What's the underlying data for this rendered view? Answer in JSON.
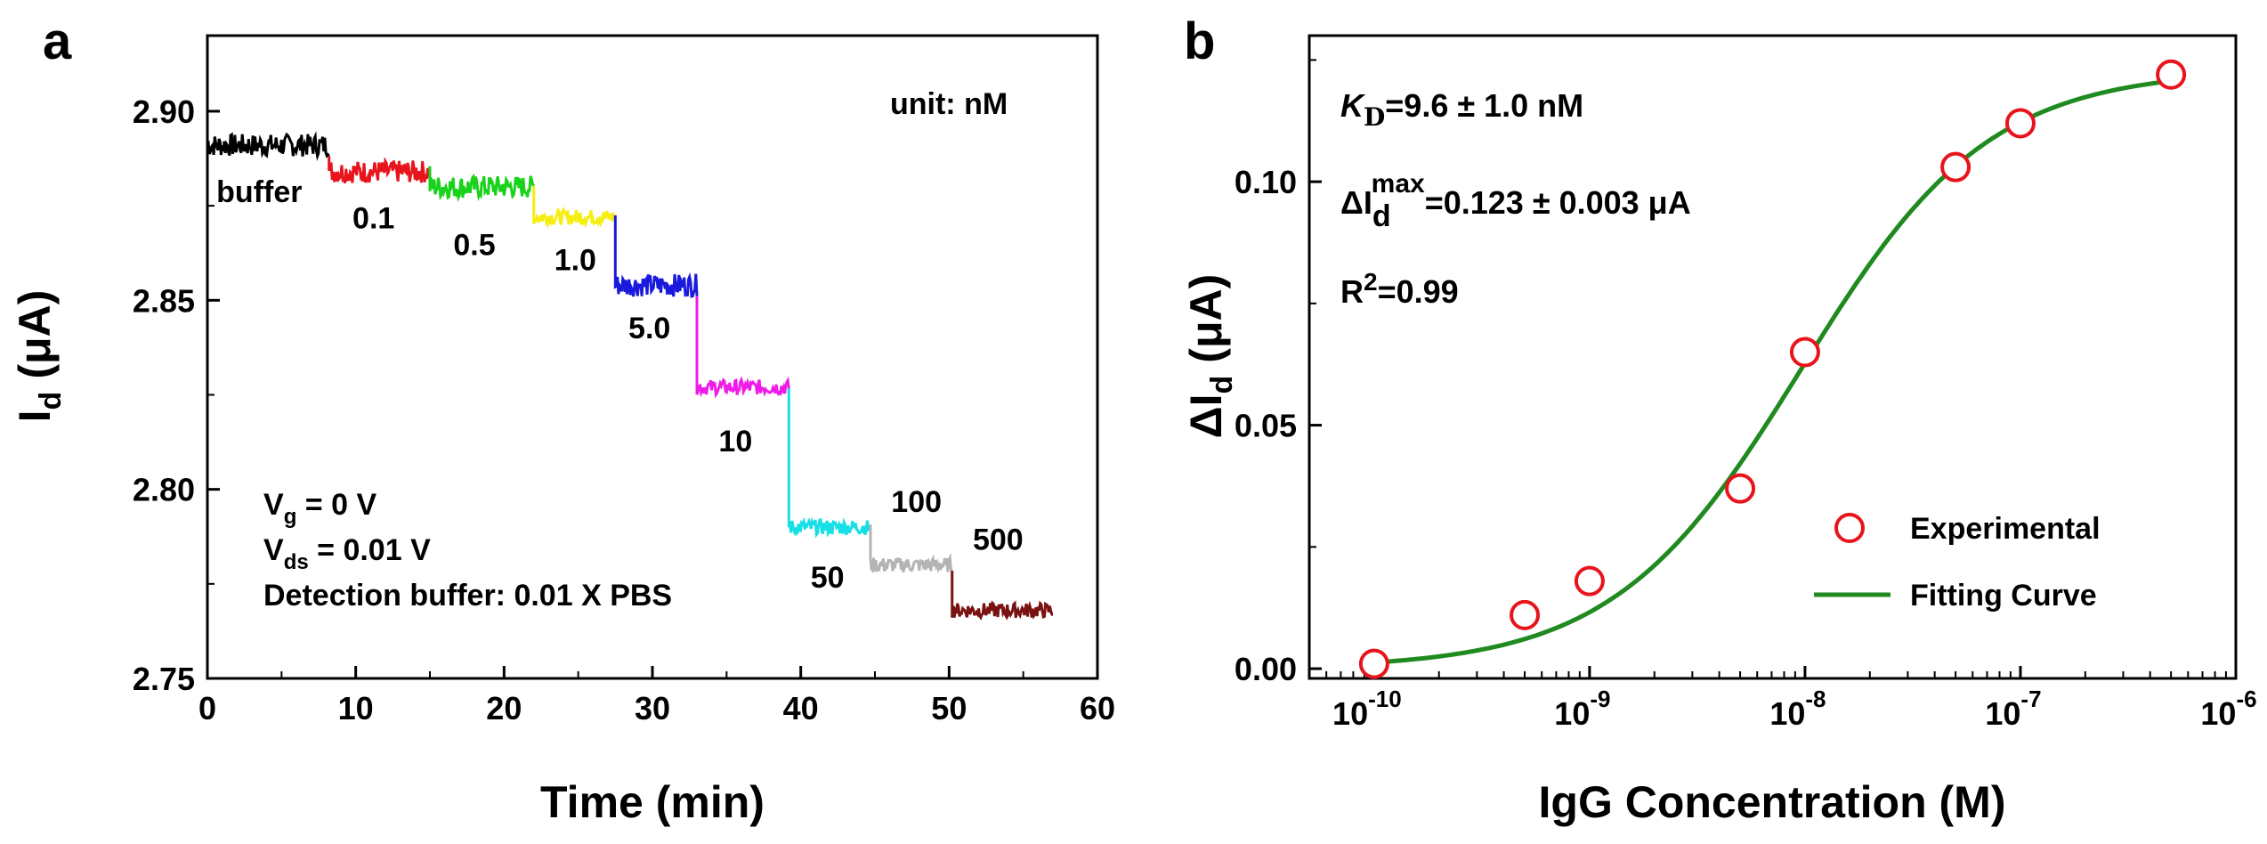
{
  "chart_data": [
    {
      "panel": "a",
      "type": "line",
      "xlabel_main": "Time (min)",
      "ylabel_main": "I",
      "ylabel_sub": "d",
      "ylabel_unit": "(μA)",
      "xlim": [
        0,
        60
      ],
      "ylim": [
        2.75,
        2.92
      ],
      "xticks": [
        0,
        10,
        20,
        30,
        40,
        50,
        60
      ],
      "yticks": [
        "2.75",
        "2.80",
        "2.85",
        "2.90"
      ],
      "ytick_values": [
        2.75,
        2.8,
        2.85,
        2.9
      ],
      "unit_note": "unit: nM",
      "conditions": [
        {
          "main": "V",
          "sub": "g",
          "rest": " = 0 V"
        },
        {
          "main": "V",
          "sub": "ds",
          "rest": " = 0.01 V"
        },
        {
          "main": "Detection buffer: 0.01 X PBS",
          "sub": "",
          "rest": ""
        }
      ],
      "series": [
        {
          "label": "buffer",
          "color": "#000000",
          "t_start": 0.0,
          "t_end": 8.2,
          "level": 2.891,
          "noise": 0.003,
          "label_at": [
            3.5,
            2.876
          ]
        },
        {
          "label": "0.1",
          "color": "#e8141b",
          "t_start": 8.2,
          "t_end": 15.0,
          "level": 2.884,
          "noise": 0.003,
          "label_at": [
            11.2,
            2.869
          ]
        },
        {
          "label": "0.5",
          "color": "#18d21b",
          "t_start": 15.0,
          "t_end": 22.0,
          "level": 2.88,
          "noise": 0.003,
          "label_at": [
            18.0,
            2.862
          ]
        },
        {
          "label": "1.0",
          "color": "#f5ee10",
          "t_start": 22.0,
          "t_end": 27.5,
          "level": 2.872,
          "noise": 0.002,
          "label_at": [
            24.8,
            2.858
          ]
        },
        {
          "label": "5.0",
          "color": "#1a1adc",
          "t_start": 27.5,
          "t_end": 33.0,
          "level": 2.854,
          "noise": 0.003,
          "label_at": [
            29.8,
            2.84
          ]
        },
        {
          "label": "10",
          "color": "#ee1ce8",
          "t_start": 33.0,
          "t_end": 39.2,
          "level": 2.827,
          "noise": 0.002,
          "label_at": [
            35.6,
            2.81
          ]
        },
        {
          "label": "50",
          "color": "#16e0e6",
          "t_start": 39.2,
          "t_end": 44.7,
          "level": 2.79,
          "noise": 0.002,
          "label_at": [
            41.8,
            2.774
          ]
        },
        {
          "label": "100",
          "color": "#b4b4b4",
          "t_start": 44.7,
          "t_end": 50.2,
          "level": 2.78,
          "noise": 0.002,
          "label_at": [
            47.8,
            2.794
          ]
        },
        {
          "label": "500",
          "color": "#7a1212",
          "t_start": 50.2,
          "t_end": 57.0,
          "level": 2.768,
          "noise": 0.002,
          "label_at": [
            53.3,
            2.784
          ]
        }
      ]
    },
    {
      "panel": "b",
      "type": "scatter",
      "xlabel_main": "IgG Concentration (M)",
      "ylabel_main": "ΔI",
      "ylabel_sub": "d",
      "ylabel_unit": "(μA)",
      "xscale": "log",
      "xlim": [
        5e-11,
        1e-06
      ],
      "ylim": [
        -0.002,
        0.13
      ],
      "xticks": [
        {
          "value": 1e-10,
          "base": "10",
          "exp": "-10"
        },
        {
          "value": 1e-09,
          "base": "10",
          "exp": "-9"
        },
        {
          "value": 1e-08,
          "base": "10",
          "exp": "-8"
        },
        {
          "value": 1e-07,
          "base": "10",
          "exp": "-7"
        },
        {
          "value": 1e-06,
          "base": "10",
          "exp": "-6"
        }
      ],
      "yticks": [
        "0.00",
        "0.05",
        "0.10"
      ],
      "ytick_values": [
        0.0,
        0.05,
        0.1
      ],
      "kd_line": {
        "k": "K",
        "sub": "D",
        "rest": "=9.6 ± 1.0 nM"
      },
      "imax_line": {
        "main": "ΔI",
        "sub": "d",
        "sup": "max",
        "rest": "=0.123 ± 0.003 μA"
      },
      "r2_line": {
        "main": "R",
        "sup": "2",
        "rest": "=0.99"
      },
      "legend": {
        "position": "bottom-right",
        "experimental": "Experimental",
        "fit": "Fitting Curve"
      },
      "experimental_color": "#e8141b",
      "fit_color": "#1f8a1f",
      "points": [
        {
          "x": 1e-10,
          "y": 0.001
        },
        {
          "x": 5e-10,
          "y": 0.011
        },
        {
          "x": 1e-09,
          "y": 0.018
        },
        {
          "x": 5e-09,
          "y": 0.037
        },
        {
          "x": 1e-08,
          "y": 0.065
        },
        {
          "x": 5e-08,
          "y": 0.103
        },
        {
          "x": 1e-07,
          "y": 0.112
        },
        {
          "x": 5e-07,
          "y": 0.122
        }
      ],
      "fit": {
        "kd": 9.6e-09,
        "imax": 0.123,
        "x_from": 1e-10,
        "x_to": 5e-07
      }
    }
  ]
}
